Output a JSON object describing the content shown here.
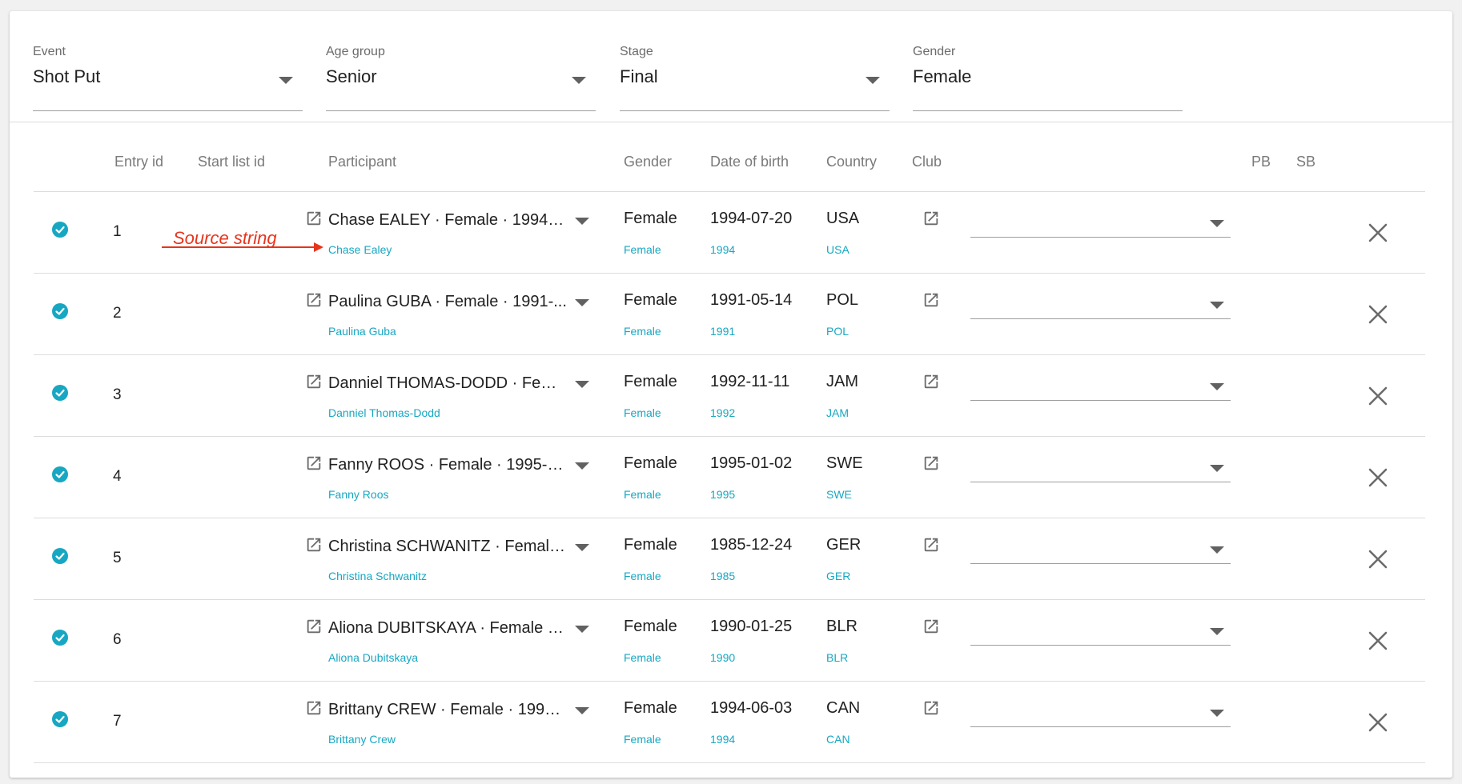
{
  "filters": [
    {
      "label": "Event",
      "value": "Shot Put",
      "has_caret": true
    },
    {
      "label": "Age group",
      "value": "Senior",
      "has_caret": true
    },
    {
      "label": "Stage",
      "value": "Final",
      "has_caret": true
    },
    {
      "label": "Gender",
      "value": "Female",
      "has_caret": false
    }
  ],
  "columns": {
    "entry_id": "Entry id",
    "start_list_id": "Start list id",
    "participant": "Participant",
    "gender": "Gender",
    "date_of_birth": "Date of birth",
    "country": "Country",
    "club": "Club",
    "pb": "PB",
    "sb": "SB"
  },
  "annotation": {
    "text": "Source string",
    "color": "#e8341c"
  },
  "colors": {
    "accent": "#17a7c2",
    "annotation": "#e8341c"
  },
  "icons": {
    "check": "check-circle-icon",
    "external": "open-in-new-icon",
    "delete": "close-icon",
    "dropdown": "caret-down-icon"
  },
  "rows": [
    {
      "entry_id": "1",
      "participant": "Chase EALEY · Female · 1994-0...",
      "participant_source": "Chase Ealey",
      "gender": "Female",
      "gender_source": "Female",
      "dob": "1994-07-20",
      "dob_source": "1994",
      "country": "USA",
      "country_source": "USA"
    },
    {
      "entry_id": "2",
      "participant": "Paulina GUBA · Female · 1991-...",
      "participant_source": "Paulina Guba",
      "gender": "Female",
      "gender_source": "Female",
      "dob": "1991-05-14",
      "dob_source": "1991",
      "country": "POL",
      "country_source": "POL"
    },
    {
      "entry_id": "3",
      "participant": "Danniel THOMAS-DODD · Fema...",
      "participant_source": "Danniel Thomas-Dodd",
      "gender": "Female",
      "gender_source": "Female",
      "dob": "1992-11-11",
      "dob_source": "1992",
      "country": "JAM",
      "country_source": "JAM"
    },
    {
      "entry_id": "4",
      "participant": "Fanny ROOS · Female · 1995-01...",
      "participant_source": "Fanny Roos",
      "gender": "Female",
      "gender_source": "Female",
      "dob": "1995-01-02",
      "dob_source": "1995",
      "country": "SWE",
      "country_source": "SWE"
    },
    {
      "entry_id": "5",
      "participant": "Christina SCHWANITZ · Female...",
      "participant_source": "Christina Schwanitz",
      "gender": "Female",
      "gender_source": "Female",
      "dob": "1985-12-24",
      "dob_source": "1985",
      "country": "GER",
      "country_source": "GER"
    },
    {
      "entry_id": "6",
      "participant": "Aliona DUBITSKAYA · Female · ...",
      "participant_source": "Aliona Dubitskaya",
      "gender": "Female",
      "gender_source": "Female",
      "dob": "1990-01-25",
      "dob_source": "1990",
      "country": "BLR",
      "country_source": "BLR"
    },
    {
      "entry_id": "7",
      "participant": "Brittany CREW · Female · 1994-...",
      "participant_source": "Brittany Crew",
      "gender": "Female",
      "gender_source": "Female",
      "dob": "1994-06-03",
      "dob_source": "1994",
      "country": "CAN",
      "country_source": "CAN"
    }
  ]
}
